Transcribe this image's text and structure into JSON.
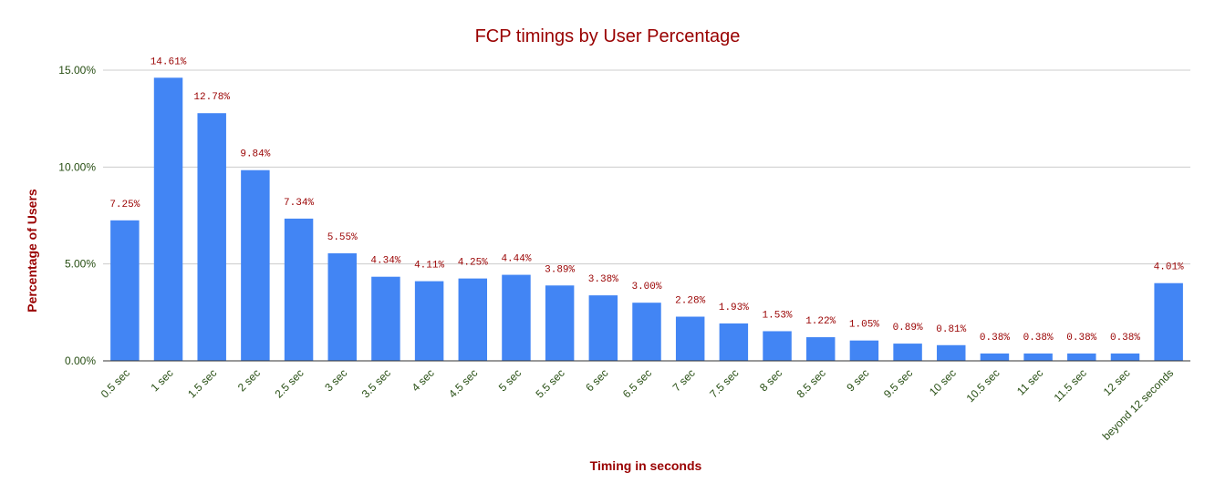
{
  "chart_data": {
    "type": "bar",
    "title": "FCP timings by User Percentage",
    "xlabel": "Timing in seconds",
    "ylabel": "Percentage of Users",
    "categories": [
      "0.5 sec",
      "1 sec",
      "1.5 sec",
      "2 sec",
      "2.5 sec",
      "3 sec",
      "3.5 sec",
      "4 sec",
      "4.5 sec",
      "5 sec",
      "5.5 sec",
      "6 sec",
      "6.5 sec",
      "7 sec",
      "7.5 sec",
      "8 sec",
      "8.5 sec",
      "9 sec",
      "9.5 sec",
      "10 sec",
      "10.5 sec",
      "11 sec",
      "11.5 sec",
      "12 sec",
      "beyond 12 seconds"
    ],
    "values": [
      7.25,
      14.61,
      12.78,
      9.84,
      7.34,
      5.55,
      4.34,
      4.11,
      4.25,
      4.44,
      3.89,
      3.38,
      3.0,
      2.28,
      1.93,
      1.53,
      1.22,
      1.05,
      0.89,
      0.81,
      0.38,
      0.38,
      0.38,
      0.38,
      4.01
    ],
    "data_labels": [
      "7.25%",
      "14.61%",
      "12.78%",
      "9.84%",
      "7.34%",
      "5.55%",
      "4.34%",
      "4.11%",
      "4.25%",
      "4.44%",
      "3.89%",
      "3.38%",
      "3.00%",
      "2.28%",
      "1.93%",
      "1.53%",
      "1.22%",
      "1.05%",
      "0.89%",
      "0.81%",
      "0.38%",
      "0.38%",
      "0.38%",
      "0.38%",
      "4.01%"
    ],
    "yticks": [
      0,
      5,
      10,
      15
    ],
    "ytick_labels": [
      "0.00%",
      "5.00%",
      "10.00%",
      "15.00%"
    ],
    "ylim": [
      0,
      15
    ],
    "grid": true,
    "legend": "none",
    "colors": {
      "bar": "#4285f4",
      "title": "#990000",
      "axis_title": "#990000",
      "tick": "#274e13",
      "data_label": "#990000",
      "grid": "#cccccc",
      "baseline": "#333333"
    }
  }
}
